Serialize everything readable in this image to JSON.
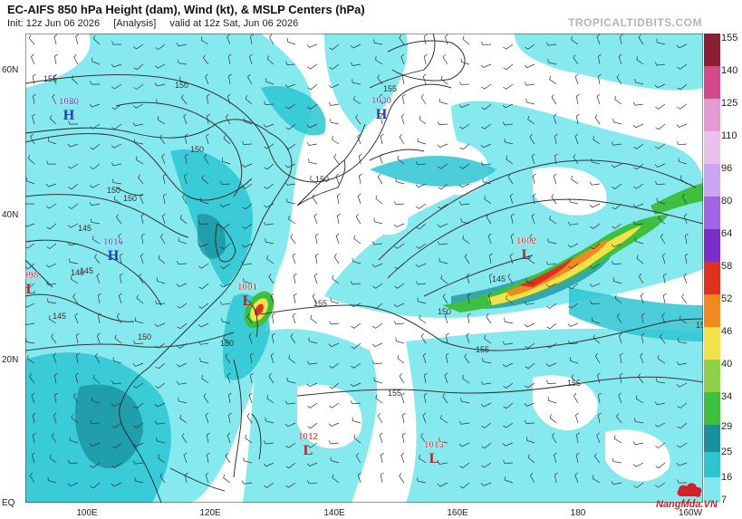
{
  "header": {
    "title": "EC-AIFS 850 hPa Height (dam), Wind (kt), & MSLP Centers (hPa)",
    "init": "Init: 12z Jun 06 2026",
    "analysis": "[Analysis]",
    "valid": "valid at 12z Sat, Jun 06 2026",
    "brand": "TROPICALTIDBITS.COM"
  },
  "axes": {
    "lat_labels": [
      "60N",
      "40N",
      "20N",
      "EQ"
    ],
    "lon_labels": [
      "100E",
      "120E",
      "140E",
      "160E",
      "180",
      "160W"
    ]
  },
  "colorbar": {
    "ticks": [
      "155",
      "140",
      "125",
      "110",
      "96",
      "80",
      "64",
      "58",
      "52",
      "46",
      "40",
      "34",
      "29",
      "25",
      "16",
      "7"
    ]
  },
  "pressure_centers": [
    {
      "type": "H",
      "value": "1020",
      "color": "#1f3fbf"
    },
    {
      "type": "H",
      "value": "1030",
      "color": "#1f3fbf"
    },
    {
      "type": "H",
      "value": "1016",
      "color": "#1f3fbf"
    },
    {
      "type": "L",
      "value": "998",
      "color": "#c0202a"
    },
    {
      "type": "L",
      "value": "1001",
      "color": "#c0202a"
    },
    {
      "type": "L",
      "value": "1002",
      "color": "#c0202a"
    },
    {
      "type": "L",
      "value": "1012",
      "color": "#c0202a"
    },
    {
      "type": "L",
      "value": "1013",
      "color": "#c0202a"
    }
  ],
  "contour_labels": [
    "155",
    "150",
    "155",
    "150",
    "150",
    "150",
    "150",
    "145",
    "145",
    "140",
    "145",
    "150",
    "155",
    "150",
    "145",
    "150",
    "155",
    "155",
    "155",
    "155"
  ],
  "footer": {
    "logo_text": "NangMua.VN"
  },
  "colors": {
    "high": "#1f3fbf",
    "low": "#c0202a",
    "wind_light": "#7fe8ee",
    "wind_mid": "#2cc6d2",
    "wind_dark": "#1a8f9e",
    "jet_green": "#3fbf3f",
    "jet_yellow": "#f2e24a",
    "jet_red": "#e0301e"
  }
}
